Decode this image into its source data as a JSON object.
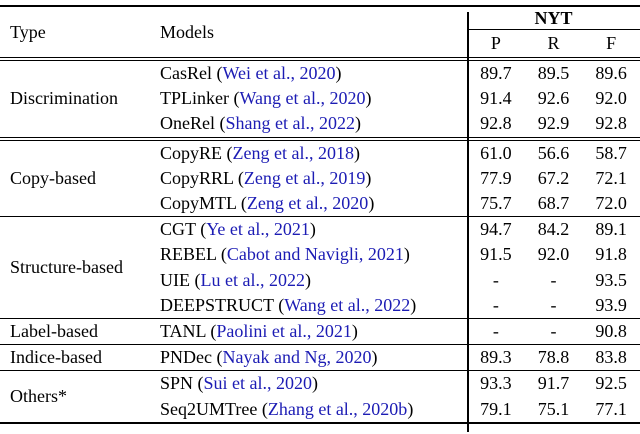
{
  "table": {
    "columns": {
      "type": "Type",
      "models": "Models",
      "group": "NYT",
      "metrics": [
        "P",
        "R",
        "F"
      ]
    },
    "sections": [
      {
        "type": "Discrimination",
        "rows": [
          {
            "model": "CasRel",
            "cite": "Wei et al., 2020",
            "p": "89.7",
            "r": "89.5",
            "f": "89.6"
          },
          {
            "model": "TPLinker",
            "cite": "Wang et al., 2020",
            "p": "91.4",
            "r": "92.6",
            "f": "92.0"
          },
          {
            "model": "OneRel",
            "cite": "Shang et al., 2022",
            "p": "92.8",
            "r": "92.9",
            "f": "92.8"
          }
        ]
      },
      {
        "type": "Copy-based",
        "rows": [
          {
            "model": "CopyRE",
            "cite": "Zeng et al., 2018",
            "p": "61.0",
            "r": "56.6",
            "f": "58.7"
          },
          {
            "model": "CopyRRL",
            "cite": "Zeng et al., 2019",
            "p": "77.9",
            "r": "67.2",
            "f": "72.1"
          },
          {
            "model": "CopyMTL",
            "cite": "Zeng et al., 2020",
            "p": "75.7",
            "r": "68.7",
            "f": "72.0"
          }
        ]
      },
      {
        "type": "Structure-based",
        "rows": [
          {
            "model": "CGT",
            "cite": "Ye et al., 2021",
            "p": "94.7",
            "r": "84.2",
            "f": "89.1"
          },
          {
            "model": "REBEL",
            "cite": "Cabot and Navigli, 2021",
            "p": "91.5",
            "r": "92.0",
            "f": "91.8"
          },
          {
            "model": "UIE",
            "cite": "Lu et al., 2022",
            "p": "-",
            "r": "-",
            "f": "93.5"
          },
          {
            "model": "DEEPSTRUCT",
            "cite": "Wang et al., 2022",
            "p": "-",
            "r": "-",
            "f": "93.9"
          }
        ]
      },
      {
        "type": "Label-based",
        "rows": [
          {
            "model": "TANL",
            "cite": "Paolini et al., 2021",
            "p": "-",
            "r": "-",
            "f": "90.8"
          }
        ]
      },
      {
        "type": "Indice-based",
        "rows": [
          {
            "model": "PNDec",
            "cite": "Nayak and Ng, 2020",
            "p": "89.3",
            "r": "78.8",
            "f": "83.8"
          }
        ]
      },
      {
        "type": "Others*",
        "rows": [
          {
            "model": "SPN",
            "cite": "Sui et al., 2020",
            "p": "93.3",
            "r": "91.7",
            "f": "92.5"
          },
          {
            "model": "Seq2UMTree",
            "cite": "Zhang et al., 2020b",
            "p": "79.1",
            "r": "75.1",
            "f": "77.1"
          }
        ]
      }
    ]
  },
  "colors": {
    "citation": "#1c1cb4",
    "rule": "#000000",
    "text": "#000000",
    "background": "#ffffff"
  }
}
